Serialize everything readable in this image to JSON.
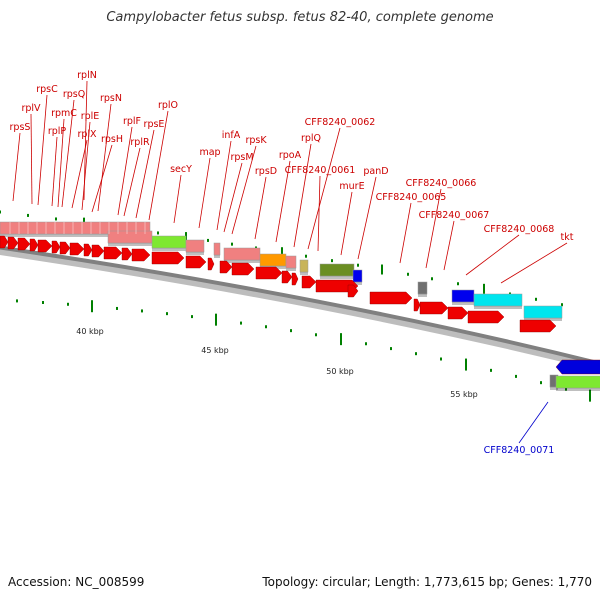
{
  "title": "Campylobacter fetus subsp. fetus 82-40, complete genome",
  "footer": {
    "accession": "Accession: NC_008599",
    "topology": "Topology: circular; Length: 1,773,615 bp; Genes: 1,770"
  },
  "colors": {
    "forward_gene_label": "#cc0000",
    "reverse_gene_label": "#0000cc",
    "gene_arrow": "#ee0000",
    "reverse_arrow": "#0000dd",
    "backbone": "#808080",
    "tick": "#008000",
    "cog_ribosomal": "#f08080",
    "cog_green": "#7ee830",
    "cog_orange": "#ff9900",
    "cog_olive": "#6b8e23",
    "cog_blue": "#0000ee",
    "cog_cyan": "#00e5ee",
    "cog_grey": "#707070",
    "cog_tan": "#c8b45a"
  },
  "kbp_labels": [
    "40 kbp",
    "45 kbp",
    "50 kbp",
    "55 kbp"
  ],
  "gene_labels": [
    "rplN",
    "rpsC",
    "rpsQ",
    "rplV",
    "rpmC",
    "rplE",
    "rpsN",
    "rplO",
    "rpsS",
    "rplP",
    "rplX",
    "rpsH",
    "rplF",
    "rplR",
    "rpsE",
    "secY",
    "map",
    "infA",
    "rpsK",
    "rpsM",
    "rpsD",
    "rpoA",
    "rplQ",
    "CFF8240_0062",
    "CFF8240_0061",
    "murE",
    "panD",
    "CFF8240_0065",
    "CFF8240_0066",
    "CFF8240_0067",
    "CFF8240_0068",
    "tkt",
    "CFF8240_0071"
  ]
}
